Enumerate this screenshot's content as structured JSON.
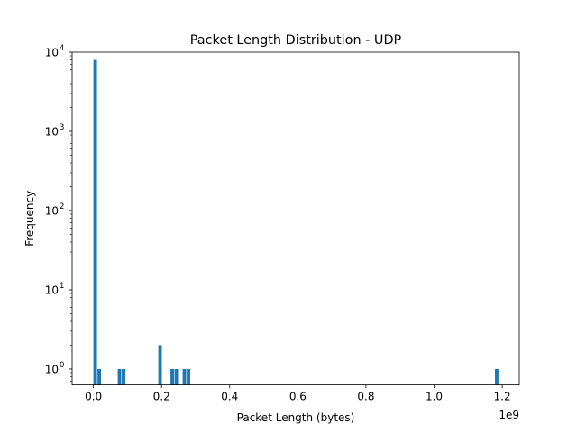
{
  "chart_data": {
    "type": "bar",
    "title": "Packet Length Distribution - UDP",
    "xlabel": "Packet Length (bytes)",
    "ylabel": "Frequency",
    "x_offset_label": "1e9",
    "y_scale": "log",
    "xlim": [
      -0.0625,
      1.25
    ],
    "ylim": [
      0.63,
      10000
    ],
    "x_ticks": [
      0.0,
      0.2,
      0.4,
      0.6,
      0.8,
      1.0,
      1.2
    ],
    "x_tick_labels": [
      "0.0",
      "0.2",
      "0.4",
      "0.6",
      "0.8",
      "1.0",
      "1.2"
    ],
    "y_ticks": [
      1,
      10,
      100,
      1000,
      10000
    ],
    "y_tick_labels": [
      "10",
      "10",
      "10",
      "10",
      "10"
    ],
    "y_tick_exponents": [
      "0",
      "1",
      "2",
      "3",
      "4"
    ],
    "bin_width": 0.0119,
    "bins": [
      {
        "x": 0.0,
        "count": 8000
      },
      {
        "x": 0.0119,
        "count": 1
      },
      {
        "x": 0.0714,
        "count": 1
      },
      {
        "x": 0.0833,
        "count": 1
      },
      {
        "x": 0.1905,
        "count": 2
      },
      {
        "x": 0.2262,
        "count": 1
      },
      {
        "x": 0.2381,
        "count": 1
      },
      {
        "x": 0.2619,
        "count": 1
      },
      {
        "x": 0.2738,
        "count": 1
      },
      {
        "x": 1.1786,
        "count": 1
      }
    ],
    "bar_color": "#1f77b4",
    "grid": false
  }
}
